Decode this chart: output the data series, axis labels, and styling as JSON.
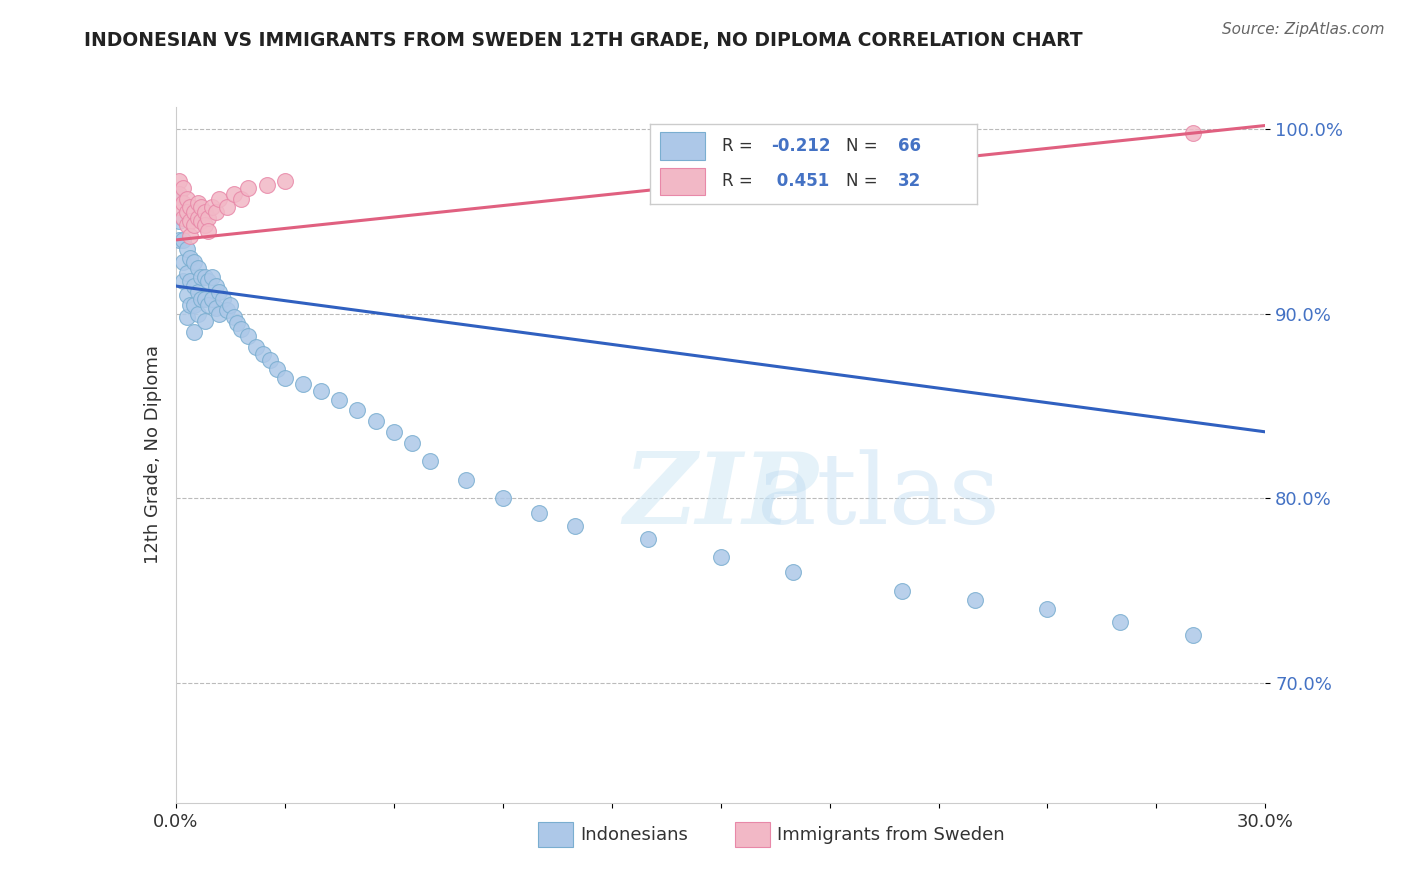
{
  "title": "INDONESIAN VS IMMIGRANTS FROM SWEDEN 12TH GRADE, NO DIPLOMA CORRELATION CHART",
  "source": "Source: ZipAtlas.com",
  "ylabel": "12th Grade, No Diploma",
  "x_min": 0.0,
  "x_max": 0.3,
  "y_min": 0.635,
  "y_max": 1.012,
  "yticks": [
    0.7,
    0.8,
    0.9,
    1.0
  ],
  "ytick_labels": [
    "70.0%",
    "80.0%",
    "90.0%",
    "100.0%"
  ],
  "indonesian_color": "#adc8e8",
  "indonesian_edge": "#7aaed0",
  "sweden_color": "#f2b8c6",
  "sweden_edge": "#e888a8",
  "trendline_blue": "#3060c0",
  "trendline_pink": "#e06080",
  "blue_trend_x0": 0.0,
  "blue_trend_y0": 0.915,
  "blue_trend_x1": 0.3,
  "blue_trend_y1": 0.836,
  "pink_trend_x0": 0.0,
  "pink_trend_y0": 0.94,
  "pink_trend_x1": 0.3,
  "pink_trend_y1": 1.002,
  "blue_scatter_x": [
    0.001,
    0.001,
    0.001,
    0.002,
    0.002,
    0.002,
    0.002,
    0.003,
    0.003,
    0.003,
    0.003,
    0.004,
    0.004,
    0.004,
    0.005,
    0.005,
    0.005,
    0.005,
    0.006,
    0.006,
    0.006,
    0.007,
    0.007,
    0.008,
    0.008,
    0.008,
    0.009,
    0.009,
    0.01,
    0.01,
    0.011,
    0.011,
    0.012,
    0.012,
    0.013,
    0.014,
    0.015,
    0.016,
    0.017,
    0.018,
    0.02,
    0.022,
    0.024,
    0.026,
    0.028,
    0.03,
    0.035,
    0.04,
    0.045,
    0.05,
    0.055,
    0.06,
    0.065,
    0.07,
    0.08,
    0.09,
    0.1,
    0.11,
    0.13,
    0.15,
    0.17,
    0.2,
    0.22,
    0.24,
    0.26,
    0.28
  ],
  "blue_scatter_y": [
    0.963,
    0.95,
    0.94,
    0.952,
    0.94,
    0.928,
    0.918,
    0.935,
    0.922,
    0.91,
    0.898,
    0.93,
    0.918,
    0.905,
    0.928,
    0.915,
    0.905,
    0.89,
    0.925,
    0.912,
    0.9,
    0.92,
    0.908,
    0.92,
    0.908,
    0.896,
    0.918,
    0.905,
    0.92,
    0.908,
    0.915,
    0.903,
    0.912,
    0.9,
    0.908,
    0.902,
    0.905,
    0.898,
    0.895,
    0.892,
    0.888,
    0.882,
    0.878,
    0.875,
    0.87,
    0.865,
    0.862,
    0.858,
    0.853,
    0.848,
    0.842,
    0.836,
    0.83,
    0.82,
    0.81,
    0.8,
    0.792,
    0.785,
    0.778,
    0.768,
    0.76,
    0.75,
    0.745,
    0.74,
    0.733,
    0.726
  ],
  "pink_scatter_x": [
    0.001,
    0.001,
    0.001,
    0.002,
    0.002,
    0.002,
    0.003,
    0.003,
    0.003,
    0.004,
    0.004,
    0.004,
    0.005,
    0.005,
    0.006,
    0.006,
    0.007,
    0.007,
    0.008,
    0.008,
    0.009,
    0.009,
    0.01,
    0.011,
    0.012,
    0.014,
    0.016,
    0.018,
    0.02,
    0.025,
    0.03,
    0.28
  ],
  "pink_scatter_y": [
    0.972,
    0.965,
    0.958,
    0.968,
    0.96,
    0.952,
    0.962,
    0.955,
    0.948,
    0.958,
    0.95,
    0.942,
    0.955,
    0.948,
    0.96,
    0.952,
    0.958,
    0.95,
    0.955,
    0.948,
    0.952,
    0.945,
    0.958,
    0.955,
    0.962,
    0.958,
    0.965,
    0.962,
    0.968,
    0.97,
    0.972,
    0.998
  ],
  "legend_blue_text": "R = -0.212   N = 66",
  "legend_pink_text": "R =  0.451   N = 32",
  "bottom_legend_blue": "Indonesians",
  "bottom_legend_pink": "Immigrants from Sweden"
}
